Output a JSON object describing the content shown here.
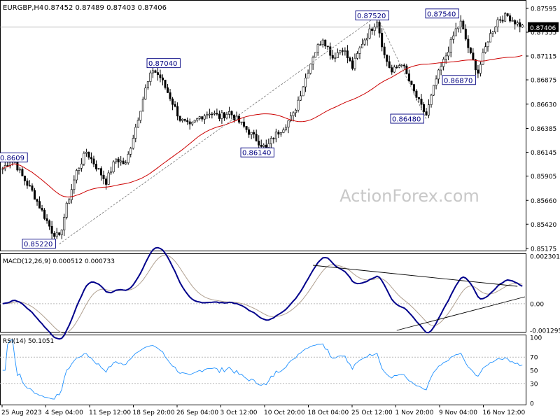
{
  "header": {
    "symbol": "EURGBP,H4",
    "ohlc": "0.87452 0.87489 0.87403 0.87406"
  },
  "watermark": "ActionForex.com",
  "colors": {
    "bull": "#000000",
    "bear": "#000000",
    "ma": "#cc0000",
    "macd_line": "#00008b",
    "macd_signal": "#b0a090",
    "rsi_line": "#1e90ff",
    "price_box_bg": "#000000",
    "label_box": "#000080",
    "grid_dash": "#bbbbbb"
  },
  "chart_data": [
    {
      "type": "candlestick",
      "name": "price",
      "ylim": [
        0.85175,
        0.87595
      ],
      "y_ticks": [
        "0.87595",
        "0.87355",
        "0.87115",
        "0.86875",
        "0.86630",
        "0.86385",
        "0.86145",
        "0.85905",
        "0.85660",
        "0.85420",
        "0.85175"
      ],
      "current_price": "0.87406",
      "x_ticks": [
        "25 Aug 2023",
        "4 Sep 04:00",
        "11 Sep 12:00",
        "18 Sep 20:00",
        "26 Sep 04:00",
        "3 Oct 12:00",
        "10 Oct 20:00",
        "18 Oct 04:00",
        "25 Oct 12:00",
        "1 Nov 20:00",
        "9 Nov 04:00",
        "16 Nov 12:00"
      ],
      "annotations": [
        {
          "text": "0.8609"
        },
        {
          "text": "0.85220"
        },
        {
          "text": "0.87040"
        },
        {
          "text": "0.86140"
        },
        {
          "text": "0.87520"
        },
        {
          "text": "0.86480"
        },
        {
          "text": "0.86870"
        },
        {
          "text": "0.87540"
        }
      ],
      "anchors": [
        {
          "i": 0,
          "p": 0.8598
        },
        {
          "i": 4,
          "p": 0.8609
        },
        {
          "i": 8,
          "p": 0.859
        },
        {
          "i": 12,
          "p": 0.8575
        },
        {
          "i": 16,
          "p": 0.8555
        },
        {
          "i": 20,
          "p": 0.8535
        },
        {
          "i": 23,
          "p": 0.8528
        },
        {
          "i": 26,
          "p": 0.856
        },
        {
          "i": 30,
          "p": 0.8595
        },
        {
          "i": 34,
          "p": 0.8615
        },
        {
          "i": 38,
          "p": 0.86
        },
        {
          "i": 42,
          "p": 0.8585
        },
        {
          "i": 46,
          "p": 0.8608
        },
        {
          "i": 50,
          "p": 0.8602
        },
        {
          "i": 54,
          "p": 0.864
        },
        {
          "i": 58,
          "p": 0.8678
        },
        {
          "i": 61,
          "p": 0.8698
        },
        {
          "i": 64,
          "p": 0.869
        },
        {
          "i": 68,
          "p": 0.867
        },
        {
          "i": 72,
          "p": 0.8648
        },
        {
          "i": 76,
          "p": 0.864
        },
        {
          "i": 80,
          "p": 0.865
        },
        {
          "i": 84,
          "p": 0.8655
        },
        {
          "i": 88,
          "p": 0.865
        },
        {
          "i": 92,
          "p": 0.8655
        },
        {
          "i": 96,
          "p": 0.8645
        },
        {
          "i": 100,
          "p": 0.8635
        },
        {
          "i": 104,
          "p": 0.8625
        },
        {
          "i": 107,
          "p": 0.8618
        },
        {
          "i": 110,
          "p": 0.863
        },
        {
          "i": 114,
          "p": 0.864
        },
        {
          "i": 118,
          "p": 0.8652
        },
        {
          "i": 122,
          "p": 0.8682
        },
        {
          "i": 126,
          "p": 0.8712
        },
        {
          "i": 130,
          "p": 0.873
        },
        {
          "i": 134,
          "p": 0.871
        },
        {
          "i": 138,
          "p": 0.872
        },
        {
          "i": 142,
          "p": 0.87
        },
        {
          "i": 146,
          "p": 0.8725
        },
        {
          "i": 150,
          "p": 0.874
        },
        {
          "i": 152,
          "p": 0.8748
        },
        {
          "i": 155,
          "p": 0.8712
        },
        {
          "i": 158,
          "p": 0.8695
        },
        {
          "i": 162,
          "p": 0.8705
        },
        {
          "i": 166,
          "p": 0.868
        },
        {
          "i": 170,
          "p": 0.866
        },
        {
          "i": 172,
          "p": 0.8652
        },
        {
          "i": 176,
          "p": 0.8688
        },
        {
          "i": 180,
          "p": 0.8712
        },
        {
          "i": 184,
          "p": 0.8738
        },
        {
          "i": 186,
          "p": 0.8745
        },
        {
          "i": 190,
          "p": 0.8712
        },
        {
          "i": 193,
          "p": 0.8695
        },
        {
          "i": 197,
          "p": 0.8728
        },
        {
          "i": 201,
          "p": 0.8748
        },
        {
          "i": 205,
          "p": 0.8752
        },
        {
          "i": 209,
          "p": 0.8744
        },
        {
          "i": 211,
          "p": 0.8741
        }
      ],
      "n_candles": 212,
      "ma_period": 55
    },
    {
      "type": "line",
      "name": "MACD(12,26,9) 0.000512 0.000733",
      "ylim": [
        -0.00129,
        0.0023
      ],
      "y_ticks": [
        "0.002301",
        "0.00",
        "-0.001295"
      ],
      "zero_label": "0.00"
    },
    {
      "type": "line",
      "name": "RSI(14) 50.1051",
      "ylim": [
        0,
        100
      ],
      "y_ticks": [
        "100",
        "70",
        "50",
        "30",
        "0"
      ]
    }
  ]
}
